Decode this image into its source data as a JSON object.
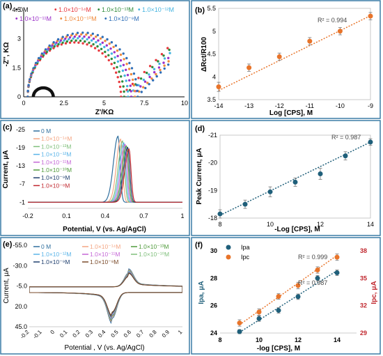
{
  "chart_data": [
    {
      "panel": "(a)",
      "type": "scatter",
      "xlabel": "Z'/KΩ",
      "ylabel": "-Z'', KΩ",
      "xlim": [
        0,
        10
      ],
      "ylim": [
        0,
        4.5
      ],
      "xticks": [
        0,
        2.5,
        5,
        7.5,
        10
      ],
      "yticks": [
        0,
        1.5,
        3,
        4.5
      ],
      "legend": [
        {
          "name": "0M",
          "color": "#111111"
        },
        {
          "name": "1.0×10⁻¹⁴M",
          "color": "#e8383d"
        },
        {
          "name": "1.0×10⁻¹³M",
          "color": "#2e8b3a"
        },
        {
          "name": "1.0×10⁻¹²M",
          "color": "#45b4e0"
        },
        {
          "name": "1.0×10⁻¹¹M",
          "color": "#9b30c8"
        },
        {
          "name": "1.0×10⁻¹⁰M",
          "color": "#f08a3c"
        },
        {
          "name": "1.0×10⁻⁹M",
          "color": "#2f6fb8"
        }
      ],
      "series": [
        {
          "name": "0M",
          "color": "#111111",
          "bare": true,
          "radius": 0.62,
          "center": 1.22,
          "tail": 0.35
        },
        {
          "name": "1.0×10⁻¹⁴M",
          "color": "#e8383d",
          "radius": 2.9,
          "center": 3.55,
          "tail": 2.9
        },
        {
          "name": "1.0×10⁻¹³M",
          "color": "#2e8b3a",
          "radius": 3.0,
          "center": 3.75,
          "tail": 2.8
        },
        {
          "name": "1.0×10⁻¹²M",
          "color": "#45b4e0",
          "radius": 3.12,
          "center": 3.92,
          "tail": 2.6
        },
        {
          "name": "1.0×10⁻¹¹M",
          "color": "#9b30c8",
          "radius": 3.22,
          "center": 4.1,
          "tail": 2.3
        },
        {
          "name": "1.0×10⁻¹⁰M",
          "color": "#f08a3c",
          "radius": 3.33,
          "center": 4.25,
          "tail": 2.1
        },
        {
          "name": "1.0×10⁻⁹M",
          "color": "#2f6fb8",
          "radius": 3.42,
          "center": 4.4,
          "tail": 1.9
        }
      ]
    },
    {
      "panel": "(b)",
      "type": "scatter",
      "xlabel": "Log [CPS], M",
      "ylabel": "ΔRct/R100",
      "xlim": [
        -14,
        -9
      ],
      "ylim": [
        3.5,
        5.5
      ],
      "xticks": [
        -14,
        -13,
        -12,
        -11,
        -10,
        -9
      ],
      "yticks": [
        3.5,
        4,
        4.5,
        5,
        5.5
      ],
      "annotation": "R² = 0.994",
      "color": "#e8742a",
      "x": [
        -14,
        -13,
        -12,
        -11,
        -10,
        -9
      ],
      "y": [
        3.78,
        4.2,
        4.44,
        4.78,
        5.0,
        5.33
      ],
      "err": [
        0.1,
        0.08,
        0.08,
        0.08,
        0.08,
        0.08
      ],
      "fit": [
        [
          -14,
          3.7
        ],
        [
          -9,
          5.34
        ]
      ]
    },
    {
      "panel": "(c)",
      "type": "line",
      "xlabel": "Potential, V (vs. Ag/AgCl)",
      "ylabel": "Current, μA",
      "xlim": [
        -0.2,
        1
      ],
      "ylim": [
        -25,
        1
      ],
      "inverted_y": true,
      "xticks": [
        -0.2,
        0.1,
        0.4,
        0.7,
        1
      ],
      "xtick_labels": [
        "-0.2",
        "0.1",
        "0.4",
        "0.7",
        "1"
      ],
      "yticks": [
        -25,
        -19,
        -13,
        -7,
        -1
      ],
      "legend_position": "top-left",
      "series": [
        {
          "name": "0 M",
          "color": "#2f6f9e",
          "peak_x": 0.5,
          "peak": -22.8,
          "width": 0.055
        },
        {
          "name": "1.0×10⁻¹⁴M",
          "color": "#f4a582",
          "peak_x": 0.52,
          "peak": -21.8,
          "width": 0.05
        },
        {
          "name": "1.0×10⁻¹³M",
          "color": "#7fbf7b",
          "peak_x": 0.535,
          "peak": -21.2,
          "width": 0.05
        },
        {
          "name": "1.0×10⁻¹²M",
          "color": "#5ab4e8",
          "peak_x": 0.545,
          "peak": -20.6,
          "width": 0.05
        },
        {
          "name": "1.0×10⁻¹¹M",
          "color": "#c466d6",
          "peak_x": 0.555,
          "peak": -20.1,
          "width": 0.05
        },
        {
          "name": "1.0×10⁻¹⁰M",
          "color": "#4f9a3a",
          "peak_x": 0.565,
          "peak": -19.6,
          "width": 0.05
        },
        {
          "name": "1.0×10⁻⁹M",
          "color": "#1f3f6e",
          "peak_x": 0.575,
          "peak": -19.1,
          "width": 0.05
        },
        {
          "name": "1.0×10⁻⁸M",
          "color": "#c0262d",
          "peak_x": 0.585,
          "peak": -18.6,
          "width": 0.05
        }
      ]
    },
    {
      "panel": "(d)",
      "type": "scatter",
      "xlabel": "-Log [CPS], M",
      "ylabel": "Peak Current, μA",
      "xlim": [
        8,
        14
      ],
      "ylim": [
        -21,
        -18
      ],
      "inverted_y": true,
      "xticks": [
        8,
        10,
        12,
        14
      ],
      "yticks": [
        -21,
        -20,
        -19,
        -18
      ],
      "annotation": "R² = 0.987",
      "color": "#1f5f7a",
      "x": [
        8,
        9,
        10,
        11,
        12,
        13,
        14
      ],
      "y": [
        -18.15,
        -18.5,
        -18.95,
        -19.3,
        -19.6,
        -20.25,
        -20.75
      ],
      "err": [
        0.15,
        0.15,
        0.18,
        0.15,
        0.2,
        0.15,
        0.12
      ],
      "fit": [
        [
          8,
          -18.1
        ],
        [
          14,
          -20.75
        ]
      ]
    },
    {
      "panel": "(e)",
      "type": "line",
      "xlabel": "Potential , V (vs. Ag/AgCl)",
      "ylabel": "Current, μA",
      "xlim": [
        -0.2,
        1
      ],
      "ylim": [
        -55,
        45
      ],
      "inverted_y": true,
      "xticks": [
        -0.2,
        -0.1,
        0,
        0.1,
        0.2,
        0.3,
        0.4,
        0.5,
        0.6,
        0.7,
        0.8,
        0.9,
        1
      ],
      "xtick_labels": [
        "-0.2",
        "-0.1",
        "0",
        "0.1",
        "0.2",
        "0.3",
        "0.4",
        "0.5",
        "0.6",
        "0.7",
        "0.8",
        "0.9",
        "1"
      ],
      "yticks": [
        -55,
        -30,
        -5,
        20,
        45
      ],
      "ytick_labels": [
        "-55.0",
        "-30.0",
        "-5.0",
        "20.0",
        "45.0"
      ],
      "legend_position": "top",
      "series": [
        {
          "name": "0 M",
          "color": "#2f6f9e",
          "scale": 1.22
        },
        {
          "name": "1.0×10⁻¹⁴M",
          "color": "#f4a582",
          "scale": 1.15
        },
        {
          "name": "1.0×10⁻¹³M",
          "color": "#4f9a3a",
          "scale": 1.1
        },
        {
          "name": "1.0×10⁻¹²M",
          "color": "#5ab4e8",
          "scale": 1.06
        },
        {
          "name": "1.0×10⁻¹¹M",
          "color": "#c466d6",
          "scale": 1.02
        },
        {
          "name": "1.0×10⁻¹⁰M",
          "color": "#7fbf7b",
          "scale": 0.98
        },
        {
          "name": "1.0×10⁻⁹M",
          "color": "#1f3f6e",
          "scale": 0.95
        },
        {
          "name": "1.0×10⁻⁸M",
          "color": "#7a4a2a",
          "scale": 0.92
        }
      ]
    },
    {
      "panel": "(f)",
      "type": "scatter",
      "xlabel": "-log [CPS], M",
      "ylabel": "Ipa, μA",
      "ylabel2": "Ipc, μA",
      "xlim": [
        8,
        15
      ],
      "ylim": [
        24,
        30
      ],
      "ylim2": [
        29,
        38
      ],
      "xticks": [
        8,
        10,
        12,
        14
      ],
      "yticks": [
        24,
        26,
        28,
        30
      ],
      "yticks2": [
        29,
        32,
        35,
        38
      ],
      "legend_position": "top-left",
      "annotations": [
        "R² = 0.999",
        "R² = 0.987"
      ],
      "series": [
        {
          "name": "Ipa",
          "color": "#1f5f7a",
          "axis": "left",
          "x": [
            9,
            10,
            11,
            12,
            13,
            14
          ],
          "y": [
            24.1,
            25.05,
            25.65,
            26.65,
            28.0,
            28.4
          ],
          "err": [
            0.15,
            0.2,
            0.2,
            0.2,
            0.2,
            0.2
          ],
          "fit": [
            [
              9,
              24.05
            ],
            [
              14,
              28.55
            ]
          ]
        },
        {
          "name": "Ipc",
          "color": "#e8742a",
          "axis": "right",
          "x": [
            9,
            10,
            11,
            12,
            13,
            14
          ],
          "y": [
            30.1,
            31.3,
            33.0,
            34.2,
            35.9,
            37.3
          ],
          "err": [
            0.35,
            0.35,
            0.3,
            0.35,
            0.35,
            0.35
          ],
          "fit": [
            [
              9,
              29.9
            ],
            [
              14,
              37.5
            ]
          ]
        }
      ]
    }
  ]
}
